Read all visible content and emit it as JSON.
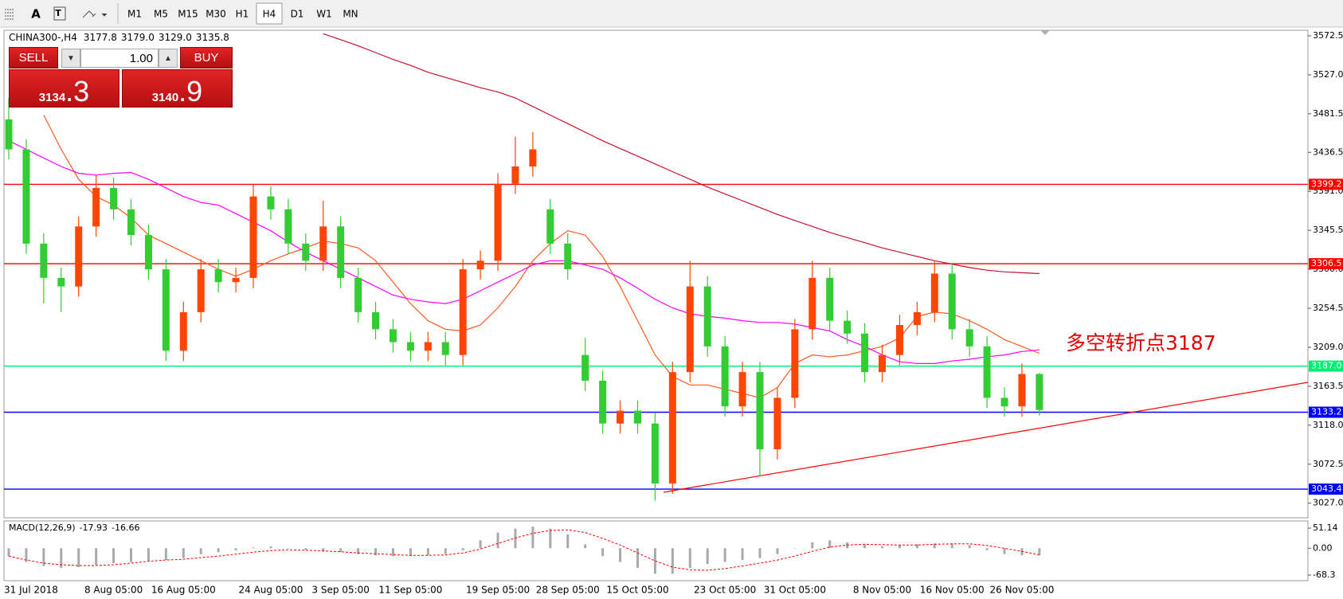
{
  "toolbar": {
    "font_button": "A",
    "timeframes": [
      "M1",
      "M5",
      "M15",
      "M30",
      "H1",
      "H4",
      "D1",
      "W1",
      "MN"
    ],
    "active": "H4"
  },
  "header": {
    "symbol": "CHINA300-,H4",
    "ohlc": [
      "3177.8",
      "3179.0",
      "3129.0",
      "3135.8"
    ]
  },
  "trade_panel": {
    "sell": "SELL",
    "lot": "1.00",
    "buy": "BUY",
    "bid_big": "3134",
    "bid_small": ".3",
    "ask_big": "3140",
    "ask_small": ".9"
  },
  "chart_data": [
    {
      "type": "candlestick",
      "categories": [
        "31 Jul 2018",
        null,
        null,
        null,
        null,
        null,
        "8 Aug 05:00",
        null,
        null,
        null,
        "16 Aug 05:00",
        null,
        null,
        null,
        null,
        "24 Aug 05:00",
        null,
        null,
        null,
        "3 Sep 05:00",
        null,
        null,
        null,
        "11 Sep 05:00",
        null,
        null,
        null,
        null,
        "19 Sep 05:00",
        null,
        null,
        null,
        "28 Sep 05:00",
        null,
        null,
        null,
        "15 Oct 05:00",
        null,
        null,
        null,
        null,
        "23 Oct 05:00",
        null,
        null,
        null,
        "31 Oct 05:00",
        null,
        null,
        null,
        null,
        "8 Nov 05:00",
        null,
        null,
        null,
        "16 Nov 05:00",
        null,
        null,
        null,
        "26 Nov 05:00",
        null
      ],
      "open": [
        3475,
        3440,
        3330,
        3290,
        3280,
        3350,
        3395,
        3370,
        3340,
        3300,
        3205,
        3250,
        3300,
        3285,
        3290,
        3385,
        3370,
        3330,
        3310,
        3350,
        3290,
        3250,
        3230,
        3215,
        3205,
        3215,
        3200,
        3300,
        3310,
        3400,
        3420,
        3370,
        3330,
        3200,
        3170,
        3120,
        3135,
        3120,
        3050,
        3180,
        3280,
        3210,
        3140,
        3180,
        3090,
        3150,
        3230,
        3290,
        3240,
        3225,
        3180,
        3200,
        3235,
        3250,
        3295,
        3230,
        3210,
        3150,
        3140,
        3177.8
      ],
      "high": [
        3500,
        3452,
        3342,
        3302,
        3362,
        3410,
        3407,
        3382,
        3352,
        3312,
        3262,
        3312,
        3312,
        3302,
        3400,
        3397,
        3382,
        3342,
        3380,
        3362,
        3302,
        3262,
        3242,
        3227,
        3227,
        3227,
        3312,
        3322,
        3412,
        3455,
        3460,
        3382,
        3342,
        3220,
        3182,
        3147,
        3147,
        3132,
        3192,
        3310,
        3292,
        3222,
        3192,
        3192,
        3162,
        3242,
        3310,
        3302,
        3252,
        3237,
        3212,
        3247,
        3262,
        3310,
        3307,
        3242,
        3222,
        3162,
        3190,
        3179
      ],
      "low": [
        3428,
        3318,
        3260,
        3250,
        3268,
        3338,
        3358,
        3328,
        3288,
        3193,
        3193,
        3238,
        3273,
        3273,
        3278,
        3358,
        3318,
        3298,
        3298,
        3278,
        3238,
        3218,
        3203,
        3193,
        3193,
        3188,
        3188,
        3288,
        3298,
        3388,
        3408,
        3318,
        3288,
        3158,
        3108,
        3108,
        3108,
        3030,
        3038,
        3168,
        3198,
        3128,
        3128,
        3060,
        3078,
        3138,
        3218,
        3228,
        3213,
        3168,
        3168,
        3188,
        3223,
        3238,
        3218,
        3198,
        3138,
        3128,
        3128,
        3129
      ],
      "close": [
        3440,
        3330,
        3290,
        3280,
        3350,
        3395,
        3370,
        3340,
        3300,
        3205,
        3250,
        3300,
        3285,
        3290,
        3385,
        3370,
        3330,
        3310,
        3350,
        3290,
        3250,
        3230,
        3215,
        3205,
        3215,
        3200,
        3300,
        3310,
        3400,
        3420,
        3440,
        3330,
        3300,
        3170,
        3120,
        3135,
        3120,
        3050,
        3180,
        3280,
        3210,
        3140,
        3180,
        3090,
        3150,
        3230,
        3290,
        3240,
        3225,
        3180,
        3200,
        3235,
        3250,
        3295,
        3230,
        3210,
        3150,
        3140,
        3177.8,
        3135.8
      ],
      "up_color": "#ff4500",
      "down_color": "#32cd32",
      "lines": [
        {
          "color": "#ff5a1f",
          "values": [
            null,
            null,
            3480,
            3440,
            3405,
            3385,
            3375,
            3360,
            3340,
            3330,
            3320,
            3310,
            3300,
            3292,
            3300,
            3310,
            3318,
            3325,
            3333,
            3330,
            3325,
            3310,
            3285,
            3260,
            3240,
            3230,
            3228,
            3235,
            3255,
            3280,
            3310,
            3330,
            3345,
            3340,
            3315,
            3280,
            3240,
            3200,
            3175,
            3165,
            3165,
            3160,
            3155,
            3150,
            3162,
            3190,
            3200,
            3198,
            3200,
            3205,
            3210,
            3220,
            3245,
            3250,
            3248,
            3240,
            3230,
            3218,
            3210,
            3202
          ]
        },
        {
          "color": "#ff00ff",
          "values": [
            3450,
            3440,
            3430,
            3420,
            3412,
            3410,
            3412,
            3413,
            3405,
            3395,
            3385,
            3378,
            3375,
            3365,
            3355,
            3345,
            3332,
            3320,
            3310,
            3300,
            3290,
            3280,
            3270,
            3265,
            3262,
            3260,
            3265,
            3275,
            3285,
            3295,
            3305,
            3310,
            3310,
            3305,
            3300,
            3290,
            3278,
            3265,
            3255,
            3248,
            3245,
            3243,
            3240,
            3238,
            3238,
            3236,
            3232,
            3228,
            3218,
            3210,
            3200,
            3192,
            3190,
            3190,
            3193,
            3195,
            3198,
            3200,
            3204,
            3206
          ]
        },
        {
          "color": "#c8102e",
          "values": [
            null,
            null,
            null,
            null,
            null,
            null,
            null,
            null,
            null,
            null,
            null,
            null,
            null,
            null,
            null,
            null,
            null,
            null,
            3575,
            3568,
            3561,
            3553,
            3545,
            3538,
            3530,
            3524,
            3518,
            3512,
            3507,
            3500,
            3490,
            3480,
            3470,
            3460,
            3450,
            3441,
            3432,
            3423,
            3414,
            3405,
            3396,
            3388,
            3380,
            3372,
            3364,
            3357,
            3350,
            3343,
            3337,
            3331,
            3325,
            3320,
            3315,
            3310,
            3306,
            3302,
            3299,
            3297,
            3296,
            3295
          ]
        }
      ],
      "levels": [
        {
          "value": 3399.2,
          "color": "#ff0000"
        },
        {
          "value": 3306.5,
          "color": "#ff0000"
        },
        {
          "value": 3187,
          "label": "3187.0",
          "color": "#00ee76"
        },
        {
          "value": 3133.2,
          "color": "#0000ff"
        },
        {
          "value": 3043.4,
          "color": "#0000ff"
        }
      ],
      "annotation": "多空转折点3187",
      "ylim": [
        3010,
        3579
      ],
      "yticks": [
        3572.5,
        {
          "value": 3527,
          "label": "3527.0"
        },
        3481.5,
        3436.5,
        {
          "value": 3391,
          "label": "3391.0"
        },
        3345.5,
        {
          "value": 3300,
          "label": "3300.0"
        },
        3254.5,
        {
          "value": 3209,
          "label": "3209.0"
        },
        3163.5,
        {
          "value": 3118,
          "label": "3118.0"
        },
        3072.5,
        {
          "value": 3027,
          "label": "3027.0"
        }
      ]
    },
    {
      "type": "macd",
      "title": "MACD(12,26,9)",
      "title_values": [
        -17.93,
        -16.66
      ],
      "histogram": [
        -20,
        -35,
        -45,
        -50,
        -48,
        -42,
        -38,
        -35,
        -32,
        -30,
        -25,
        -15,
        -10,
        -5,
        2,
        5,
        0,
        -4,
        -8,
        -10,
        -15,
        -18,
        -20,
        -20,
        -18,
        -15,
        -5,
        20,
        40,
        50,
        55,
        50,
        35,
        10,
        -20,
        -35,
        -50,
        -65,
        -65,
        -50,
        -40,
        -35,
        -30,
        -25,
        -15,
        0,
        15,
        20,
        15,
        10,
        5,
        8,
        10,
        12,
        12,
        8,
        -5,
        -15,
        -18,
        -17.93
      ],
      "signal": [
        -20,
        -30,
        -38,
        -42,
        -44,
        -44,
        -42,
        -38,
        -33,
        -30,
        -28,
        -24,
        -20,
        -15,
        -10,
        -6,
        -4,
        -5,
        -7,
        -9,
        -12,
        -14,
        -16,
        -18,
        -18,
        -17,
        -12,
        -2,
        12,
        26,
        38,
        45,
        47,
        40,
        25,
        8,
        -12,
        -32,
        -48,
        -55,
        -56,
        -52,
        -45,
        -38,
        -30,
        -20,
        -8,
        3,
        8,
        10,
        9,
        8,
        8,
        10,
        11,
        11,
        7,
        0,
        -8,
        -16.66
      ],
      "histogram_color": "#a9a9a9",
      "signal_color": "#ff0000",
      "ylim": [
        -82.5,
        69.4
      ],
      "yticks": [
        51.14,
        {
          "value": 0,
          "label": "0.00"
        },
        -68.3
      ]
    }
  ]
}
